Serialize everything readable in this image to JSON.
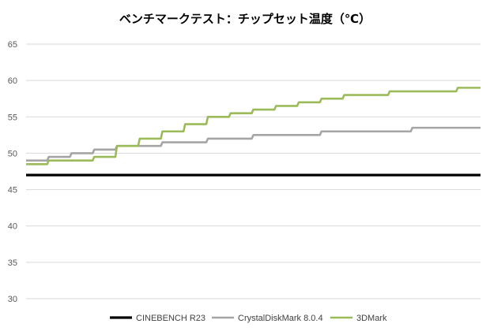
{
  "chart_data": {
    "type": "line",
    "title": "ベンチマークテスト：チップセット温度（℃）",
    "ylim": [
      30,
      65
    ],
    "yticks": [
      30,
      35,
      40,
      45,
      50,
      55,
      60,
      65
    ],
    "grid": true,
    "legend_position": "bottom",
    "x": [
      0,
      5,
      10,
      15,
      20,
      25,
      30,
      35,
      40,
      45,
      50,
      55,
      60,
      65,
      70,
      75,
      80,
      85,
      90,
      95,
      100
    ],
    "series": [
      {
        "name": "CINEBENCH R23",
        "color": "#000000",
        "values": [
          47,
          47,
          47,
          47,
          47,
          47,
          47,
          47,
          47,
          47,
          47,
          47,
          47,
          47,
          47,
          47,
          47,
          47,
          47,
          47,
          47
        ]
      },
      {
        "name": "CrystalDiskMark 8.0.4",
        "color": "#a5a5a5",
        "values": [
          49,
          49.5,
          50,
          50.5,
          51,
          51,
          51.5,
          51.5,
          52,
          52,
          52.5,
          52.5,
          52.5,
          53,
          53,
          53,
          53,
          53.5,
          53.5,
          53.5,
          53.5
        ]
      },
      {
        "name": "3DMark",
        "color": "#9bbb59",
        "values": [
          48.5,
          49,
          49,
          49.5,
          51,
          52,
          53,
          54,
          55,
          55.5,
          56,
          56.5,
          57,
          57.5,
          58,
          58,
          58.5,
          58.5,
          58.5,
          59,
          59
        ]
      }
    ]
  }
}
